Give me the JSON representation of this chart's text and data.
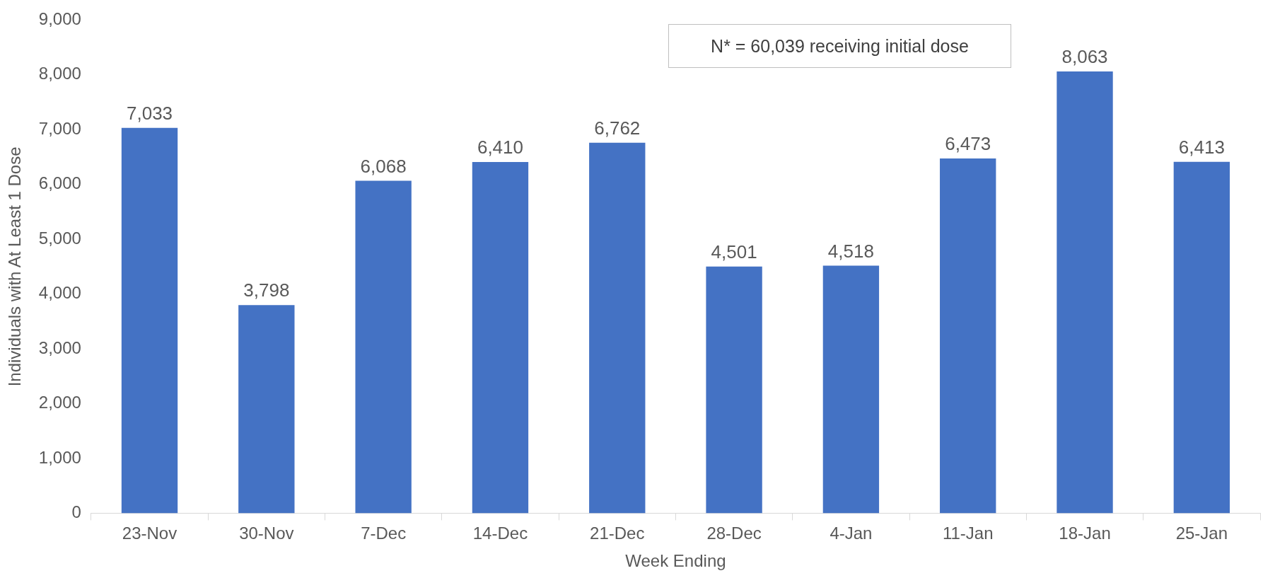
{
  "chart_data": {
    "type": "bar",
    "ylabel": "Individuals with At Least 1 Dose",
    "xlabel": "Week Ending",
    "categories": [
      "23-Nov",
      "30-Nov",
      "7-Dec",
      "14-Dec",
      "21-Dec",
      "28-Dec",
      "4-Jan",
      "11-Jan",
      "18-Jan",
      "25-Jan"
    ],
    "values": [
      7033,
      3798,
      6068,
      6410,
      6762,
      4501,
      4518,
      6473,
      8063,
      6413
    ],
    "value_labels": [
      "7,033",
      "3,798",
      "6,068",
      "6,410",
      "6,762",
      "4,501",
      "4,518",
      "6,473",
      "8,063",
      "6,413"
    ],
    "color": "#4472c4",
    "ylim": [
      0,
      9000
    ],
    "yticks": [
      0,
      {
        "value": 1000,
        "label": "1,000"
      },
      {
        "value": 2000,
        "label": "2,000"
      },
      {
        "value": 3000,
        "label": "3,000"
      },
      {
        "value": 4000,
        "label": "4,000"
      },
      {
        "value": 5000,
        "label": "5,000"
      },
      {
        "value": 6000,
        "label": "6,000"
      },
      {
        "value": 7000,
        "label": "7,000"
      },
      {
        "value": 8000,
        "label": "8,000"
      },
      {
        "value": 9000,
        "label": "9,000"
      }
    ],
    "grid": false,
    "legend": false,
    "annotations": [
      "N* = 60,039 receiving initial dose"
    ]
  }
}
